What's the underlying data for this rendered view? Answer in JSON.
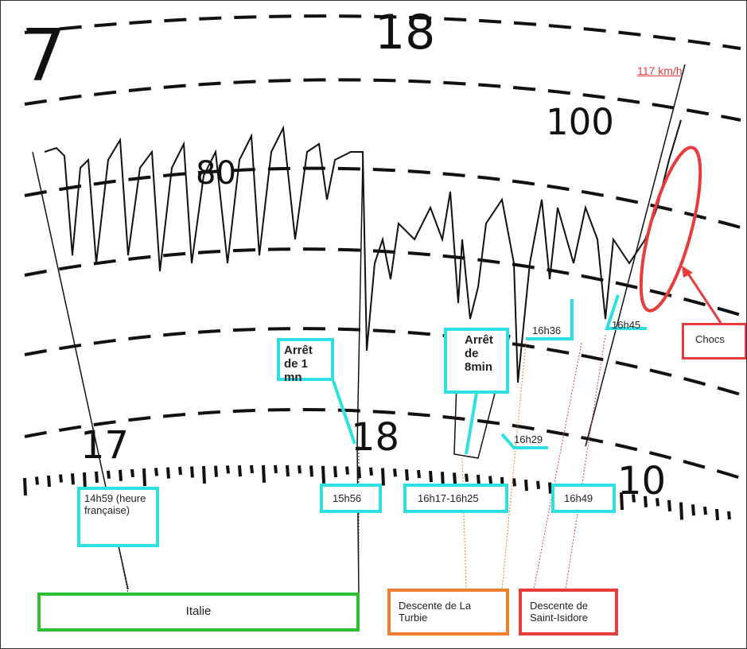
{
  "dial": {
    "hour_top_left": "7",
    "hour_top": "18",
    "speed_high": "100",
    "speed_mid": "80",
    "hour_low_left": "17",
    "hour_low_mid": "18",
    "hour_low_right": "10"
  },
  "annotations": {
    "max_speed": "117 km/h",
    "shocks": "Chocs",
    "t_16h45": "16h45",
    "t_16h36": "16h36",
    "stop_1": "Arrêt de 1 mn",
    "stop_8": "Arrêt de 8min",
    "t_16h29": "16h29",
    "t_14h59": "14h59 (heure française)",
    "t_15h56": "15h56",
    "t_16h17": "16h17-16h25",
    "t_16h49": "16h49"
  },
  "sections": {
    "italy": "Italie",
    "la_turbie": "Descente de  La Turbie",
    "saint_isidore": "Descente de Saint-Isidore"
  }
}
